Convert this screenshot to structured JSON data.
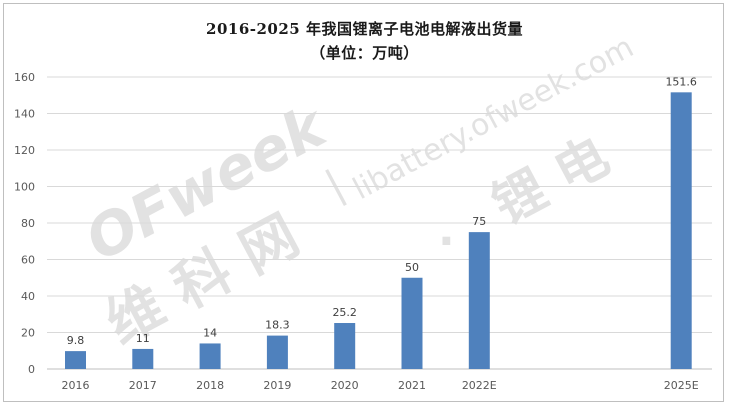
{
  "chart_data": {
    "type": "bar",
    "title": "2016-2025 年我国锂离子电池电解液出货量",
    "subtitle": "（单位：万吨）",
    "categories": [
      "2016",
      "2017",
      "2018",
      "2019",
      "2020",
      "2021",
      "2022E",
      "2025E"
    ],
    "values": [
      9.8,
      11,
      14,
      18.3,
      25.2,
      50,
      75,
      151.6
    ],
    "data_labels": [
      "9.8",
      "11",
      "14",
      "18.3",
      "25.2",
      "50",
      "75",
      "151.6"
    ],
    "y_ticks": [
      "0",
      "20",
      "40",
      "60",
      "80",
      "100",
      "120",
      "140",
      "160"
    ],
    "ylim": [
      0,
      160
    ],
    "xlabel": "",
    "ylabel": "",
    "grid": true,
    "legend": "none",
    "bar_color": "#4f81bd"
  },
  "watermark": {
    "brand": "OFweek",
    "site": "libattery.ofweek.com",
    "divider": "|",
    "dot": "·",
    "cn_left": "维 科 网",
    "cn_right": "锂 电"
  }
}
